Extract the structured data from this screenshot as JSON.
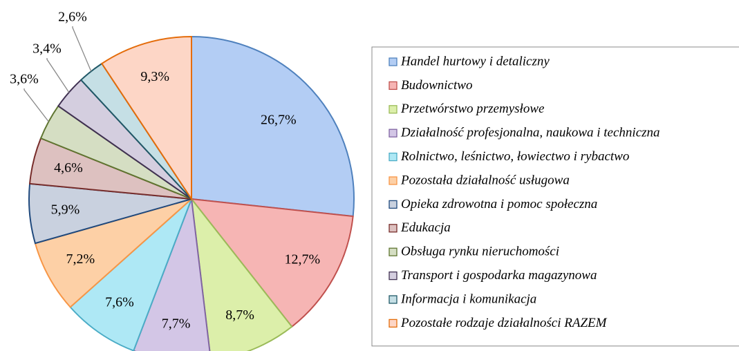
{
  "chart_data": {
    "type": "pie",
    "categories": [
      "Handel hurtowy i detaliczny",
      "Budownictwo",
      "Przetwórstwo przemysłowe",
      "Działalność profesjonalna, naukowa i techniczna",
      "Rolnictwo, leśnictwo, łowiectwo i rybactwo",
      "Pozostała działalność usługowa",
      "Opieka zdrowotna i pomoc społeczna",
      "Edukacja",
      "Obsługa rynku nieruchomości",
      "Transport i gospodarka magazynowa",
      "Informacja i komunikacja",
      "Pozostałe rodzaje działalności RAZEM"
    ],
    "values": [
      26.7,
      12.7,
      8.7,
      7.7,
      7.6,
      7.2,
      5.9,
      4.6,
      3.6,
      3.4,
      2.6,
      9.3
    ],
    "value_labels": [
      "26,7%",
      "12,7%",
      "8,7%",
      "7,7%",
      "7,6%",
      "7,2%",
      "5,9%",
      "4,6%",
      "3,6%",
      "3,4%",
      "2,6%",
      "9,3%"
    ],
    "colors": [
      "#b3cdf4",
      "#f6b5b4",
      "#dcefaa",
      "#d3c6e6",
      "#aee8f5",
      "#fdd0a6",
      "#c9d1df",
      "#ddc1c0",
      "#d5dec3",
      "#d4cedf",
      "#c5dfe5",
      "#fdd6c6"
    ],
    "edge_colors": [
      "#4f81bd",
      "#c0504d",
      "#9bbb59",
      "#8064a2",
      "#4bacc6",
      "#f79646",
      "#1f497d",
      "#772c2a",
      "#5f7530",
      "#403152",
      "#215968",
      "#e46c0a"
    ],
    "legend": "right"
  }
}
